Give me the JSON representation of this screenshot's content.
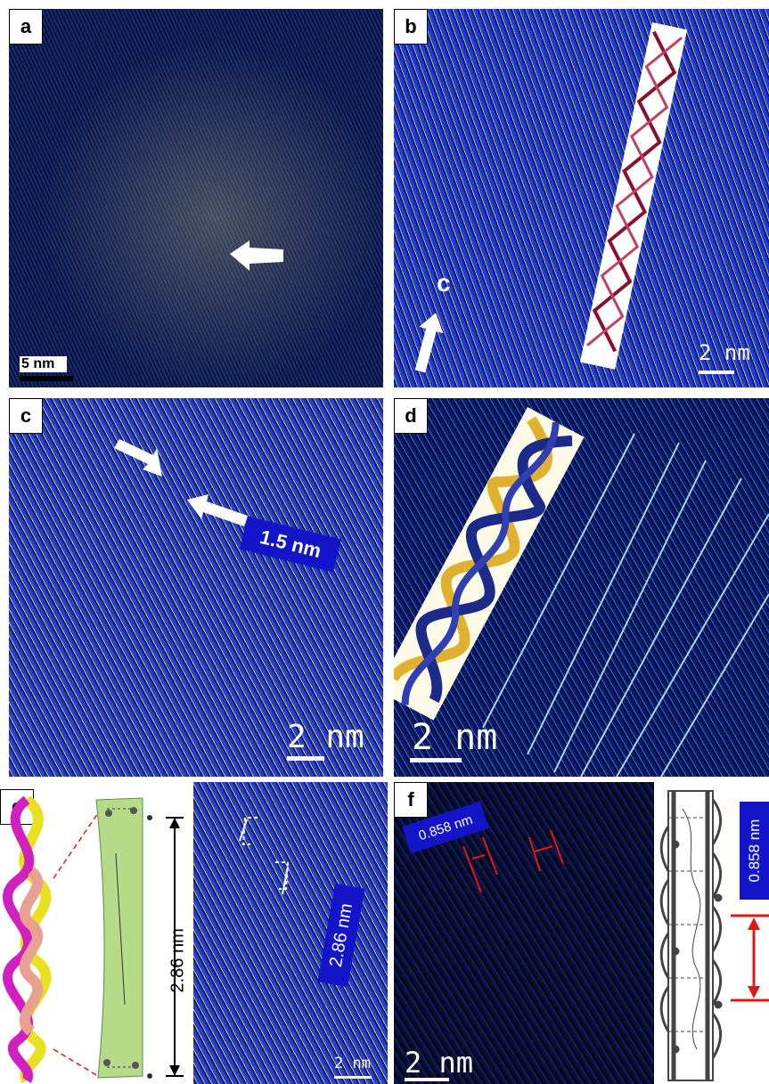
{
  "panels": {
    "a": {
      "label": "a",
      "scale": "5 nm"
    },
    "b": {
      "label": "b",
      "axis": "c",
      "scale": "2 nm"
    },
    "c": {
      "label": "c",
      "spacing": "1.5 nm",
      "scale": "2 nm"
    },
    "d": {
      "label": "d",
      "scale": "2 nm"
    },
    "e": {
      "label": "e",
      "model_length": "2.86 nm",
      "tem_spacing": "2.86 nm",
      "scale": "2 nm"
    },
    "f": {
      "label": "f",
      "spacing": "0.858 nm",
      "model_spacing": "0.858 nm",
      "scale": "2 nm"
    }
  },
  "colors": {
    "tag_blue": "#1414c8",
    "arrow_white": "#ffffff",
    "marker_red": "#e01818",
    "helix_maroon": "#8a1030",
    "helix_gold": "#e0b030",
    "helix_navy": "#1c2a8a",
    "helix_yellow": "#e8e020",
    "helix_magenta": "#d020c0",
    "helix_pink": "#e8a090",
    "model_green": "#9ccf60"
  },
  "icons": [
    "arrow-icon",
    "double-helix-icon",
    "triple-helix-icon",
    "helix-ladder-icon"
  ]
}
